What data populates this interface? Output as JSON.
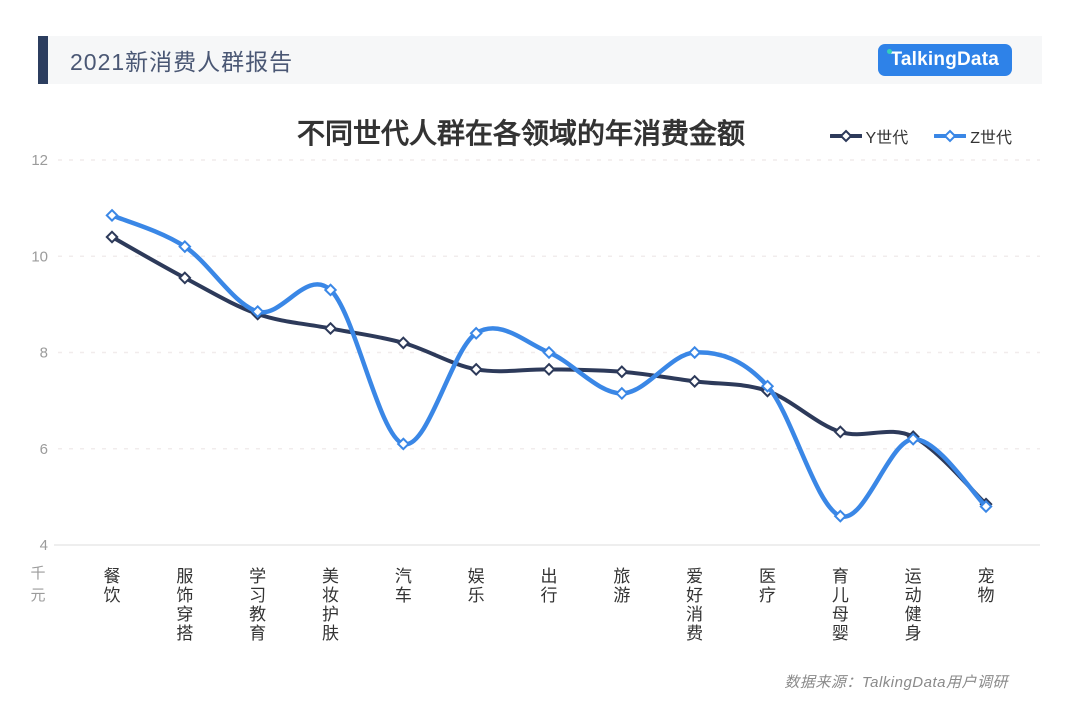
{
  "header": {
    "report_title": "2021新消费人群报告",
    "logo_text": "TalkingData",
    "accent_color": "#2c3e5f",
    "logo_bg_color": "#2e82e8",
    "logo_dot_color": "#35d0ba"
  },
  "chart_data": {
    "type": "line",
    "title": "不同世代人群在各领域的年消费金额",
    "unit_label": "千元",
    "categories": [
      "餐饮",
      "服饰穿搭",
      "学习教育",
      "美妆护肤",
      "汽车",
      "娱乐",
      "出行",
      "旅游",
      "爱好消费",
      "医疗",
      "育儿母婴",
      "运动健身",
      "宠物"
    ],
    "series": [
      {
        "name": "Y世代",
        "color": "#2d3a5a",
        "values": [
          10.4,
          9.55,
          8.8,
          8.5,
          8.2,
          7.65,
          7.65,
          7.6,
          7.4,
          7.2,
          6.35,
          6.25,
          4.85
        ]
      },
      {
        "name": "Z世代",
        "color": "#3a87e6",
        "values": [
          10.85,
          10.2,
          8.85,
          9.3,
          6.1,
          8.4,
          8.0,
          7.15,
          8.0,
          7.3,
          4.6,
          6.2,
          4.8
        ]
      }
    ],
    "y_ticks": [
      4,
      6,
      8,
      10,
      12
    ],
    "ylim": [
      4,
      12
    ],
    "grid": true,
    "smooth": true,
    "legend_position": "top-right",
    "gridline_color": "#f1ecec",
    "axis_line_color": "#dddddd",
    "tick_label_color": "#9b9b9b",
    "category_label_color": "#333333"
  },
  "footer": {
    "source_text": "数据来源：TalkingData用户调研"
  }
}
